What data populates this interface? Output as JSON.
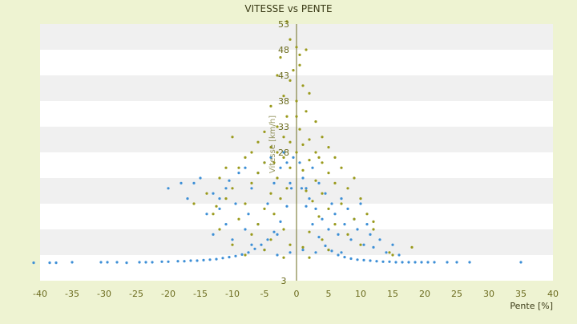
{
  "chart_data": {
    "type": "scatter",
    "title": "VITESSE vs PENTE",
    "xlabel": "Pente [%]",
    "ylabel": "Vitesse [km/h]",
    "xlim": [
      -40,
      40
    ],
    "ylim": [
      3,
      53
    ],
    "x_ticks": [
      -40,
      -35,
      -30,
      -25,
      -20,
      -15,
      -10,
      -5,
      0,
      5,
      10,
      15,
      20,
      25,
      30,
      35,
      40
    ],
    "y_ticks": [
      3,
      8,
      13,
      18,
      23,
      28,
      33,
      38,
      43,
      48,
      53
    ],
    "y_tick_labels": [
      "3",
      "",
      "",
      "",
      "",
      "28",
      "33",
      "38",
      "43",
      "48",
      "53"
    ],
    "grid": "horizontal alternating bands",
    "legend": "none",
    "colors": {
      "background": "#eef3d2",
      "plot_band_light": "#ffffff",
      "plot_band_dark": "#f0f0f0",
      "series_blue": "#3d8fd6",
      "series_olive": "#9a9a1c",
      "axis_text": "#6b6b1e"
    },
    "series": [
      {
        "color": "#3d8fd6",
        "values": [
          [
            -41,
            6.5
          ],
          [
            -38.5,
            6.5
          ],
          [
            -37.5,
            6.5
          ],
          [
            -35,
            6.6
          ],
          [
            -30.5,
            6.6
          ],
          [
            -29.5,
            6.6
          ],
          [
            -28,
            6.6
          ],
          [
            -26.5,
            6.5
          ],
          [
            -24.5,
            6.6
          ],
          [
            -23.5,
            6.6
          ],
          [
            -22.5,
            6.6
          ],
          [
            -21,
            6.7
          ],
          [
            -20,
            6.7
          ],
          [
            -18.5,
            6.8
          ],
          [
            -17.5,
            6.8
          ],
          [
            -16.5,
            6.9
          ],
          [
            -15.5,
            6.9
          ],
          [
            -14.5,
            7.0
          ],
          [
            -13.5,
            7.1
          ],
          [
            -12.5,
            7.2
          ],
          [
            -11.5,
            7.4
          ],
          [
            -10.5,
            7.6
          ],
          [
            -9.5,
            7.8
          ],
          [
            -8.5,
            8.1
          ],
          [
            -7.5,
            8.5
          ],
          [
            -6.5,
            9.2
          ],
          [
            -5.5,
            10.0
          ],
          [
            -4.5,
            11.0
          ],
          [
            -3.5,
            12.5
          ],
          [
            -2.5,
            14.5
          ],
          [
            -1.5,
            17.5
          ],
          [
            -0.8,
            21.0
          ],
          [
            0.8,
            21.0
          ],
          [
            1.5,
            17.5
          ],
          [
            2.5,
            14.0
          ],
          [
            3.5,
            11.5
          ],
          [
            4.5,
            9.8
          ],
          [
            5.5,
            8.8
          ],
          [
            6.5,
            8.0
          ],
          [
            7.5,
            7.6
          ],
          [
            8.5,
            7.3
          ],
          [
            9.5,
            7.1
          ],
          [
            10.5,
            7.0
          ],
          [
            11.5,
            6.9
          ],
          [
            12.5,
            6.8
          ],
          [
            13.5,
            6.7
          ],
          [
            14.5,
            6.7
          ],
          [
            15.5,
            6.6
          ],
          [
            16.5,
            6.6
          ],
          [
            17.5,
            6.6
          ],
          [
            18.5,
            6.6
          ],
          [
            19.5,
            6.6
          ],
          [
            20.5,
            6.6
          ],
          [
            21.5,
            6.6
          ],
          [
            23.5,
            6.6
          ],
          [
            25,
            6.6
          ],
          [
            27,
            6.6
          ],
          [
            35,
            6.6
          ],
          [
            -16,
            22
          ],
          [
            -15,
            23
          ],
          [
            -13,
            20
          ],
          [
            -12,
            19
          ],
          [
            -12,
            17
          ],
          [
            -11,
            21
          ],
          [
            -10.5,
            22.5
          ],
          [
            -9,
            24
          ],
          [
            -8,
            25
          ],
          [
            -9.5,
            18
          ],
          [
            -7.5,
            16
          ],
          [
            -7,
            21
          ],
          [
            -6,
            24
          ],
          [
            -6,
            14
          ],
          [
            -5,
            26
          ],
          [
            -4,
            27
          ],
          [
            -4.5,
            18
          ],
          [
            -3.5,
            22
          ],
          [
            -3,
            12
          ],
          [
            -2.5,
            25
          ],
          [
            -2,
            28
          ],
          [
            -1.5,
            26
          ],
          [
            -1,
            22
          ],
          [
            -0.5,
            27
          ],
          [
            0.5,
            26
          ],
          [
            1,
            23
          ],
          [
            1.5,
            21
          ],
          [
            2,
            19
          ],
          [
            2.5,
            25
          ],
          [
            3,
            17
          ],
          [
            3.5,
            22
          ],
          [
            4,
            15
          ],
          [
            4.5,
            20
          ],
          [
            5,
            13
          ],
          [
            5.5,
            18
          ],
          [
            6,
            16
          ],
          [
            6.5,
            12
          ],
          [
            7,
            19
          ],
          [
            7.5,
            14
          ],
          [
            8,
            17
          ],
          [
            8.5,
            11
          ],
          [
            9,
            15
          ],
          [
            9.5,
            13
          ],
          [
            10,
            18
          ],
          [
            10.5,
            10
          ],
          [
            11,
            14
          ],
          [
            11.5,
            12
          ],
          [
            12,
            9.5
          ],
          [
            13,
            11
          ],
          [
            14,
            8.5
          ],
          [
            15,
            10
          ],
          [
            16,
            8
          ],
          [
            -20,
            21
          ],
          [
            -18,
            22
          ],
          [
            -17,
            19
          ],
          [
            -14,
            16
          ],
          [
            -13,
            12
          ],
          [
            -11,
            14
          ],
          [
            -10,
            11
          ],
          [
            -8,
            13
          ],
          [
            -7,
            10
          ],
          [
            -5,
            9
          ],
          [
            -3,
            8
          ],
          [
            -1,
            8.5
          ],
          [
            1,
            9
          ],
          [
            3,
            8.5
          ],
          [
            5,
            9
          ],
          [
            7,
            8.5
          ]
        ]
      },
      {
        "color": "#9a9a1c",
        "values": [
          [
            -1.5,
            53.5
          ],
          [
            -1,
            50
          ],
          [
            0,
            48.5
          ],
          [
            1.5,
            48
          ],
          [
            -2.5,
            46.5
          ],
          [
            0.5,
            45
          ],
          [
            -3,
            43
          ],
          [
            -1,
            42
          ],
          [
            1,
            41
          ],
          [
            2,
            39.5
          ],
          [
            -2,
            39
          ],
          [
            0,
            38
          ],
          [
            -4,
            37
          ],
          [
            1.5,
            36
          ],
          [
            -1.5,
            35
          ],
          [
            3,
            34
          ],
          [
            -3,
            33
          ],
          [
            0.5,
            32.5
          ],
          [
            -5,
            32
          ],
          [
            4,
            31
          ],
          [
            -2,
            31
          ],
          [
            2,
            30.5
          ],
          [
            -6,
            30
          ],
          [
            -1,
            30
          ],
          [
            1,
            29.5
          ],
          [
            5,
            29
          ],
          [
            -4,
            29
          ],
          [
            -10,
            31
          ],
          [
            -7,
            28
          ],
          [
            -3,
            28
          ],
          [
            0,
            28
          ],
          [
            3,
            28
          ],
          [
            6,
            27
          ],
          [
            -8,
            27
          ],
          [
            -2,
            27
          ],
          [
            2,
            26.5
          ],
          [
            -5,
            26
          ],
          [
            4,
            26
          ],
          [
            -9,
            25
          ],
          [
            7,
            25
          ],
          [
            -1,
            25
          ],
          [
            1,
            24.5
          ],
          [
            -6,
            24
          ],
          [
            5,
            24
          ],
          [
            -12,
            23
          ],
          [
            9,
            23
          ],
          [
            -3,
            23
          ],
          [
            3,
            22.5
          ],
          [
            -7,
            22
          ],
          [
            6,
            22
          ],
          [
            -10,
            21
          ],
          [
            8,
            21
          ],
          [
            -1.5,
            21
          ],
          [
            1.5,
            20.5
          ],
          [
            -4,
            20
          ],
          [
            4,
            20
          ],
          [
            -11,
            19
          ],
          [
            10,
            19
          ],
          [
            -2.5,
            19
          ],
          [
            2.5,
            18.5
          ],
          [
            -8,
            18
          ],
          [
            7,
            18
          ],
          [
            -5,
            17
          ],
          [
            5,
            17
          ],
          [
            -13,
            16
          ],
          [
            11,
            16
          ],
          [
            -3.5,
            16
          ],
          [
            3.5,
            15.5
          ],
          [
            -9,
            15
          ],
          [
            9,
            15
          ],
          [
            -6,
            14
          ],
          [
            6,
            14
          ],
          [
            -12,
            13
          ],
          [
            12,
            13
          ],
          [
            -2,
            13
          ],
          [
            2,
            12.5
          ],
          [
            -7,
            12
          ],
          [
            8,
            12
          ],
          [
            -4,
            11
          ],
          [
            4,
            11
          ],
          [
            -10,
            10
          ],
          [
            10,
            10
          ],
          [
            -1,
            10
          ],
          [
            1,
            9.5
          ],
          [
            -5,
            9
          ],
          [
            5,
            9
          ],
          [
            -8,
            8
          ],
          [
            15,
            8
          ],
          [
            -2,
            7.5
          ],
          [
            2,
            7.5
          ],
          [
            18,
            9.5
          ],
          [
            14.5,
            8.5
          ],
          [
            -11,
            25
          ],
          [
            -14,
            20
          ],
          [
            -16,
            18
          ],
          [
            0,
            35
          ],
          [
            -0.5,
            44
          ],
          [
            0.5,
            47
          ],
          [
            -3.5,
            26
          ],
          [
            3.5,
            27
          ],
          [
            12,
            14.5
          ],
          [
            -12.5,
            17.5
          ]
        ]
      }
    ]
  }
}
